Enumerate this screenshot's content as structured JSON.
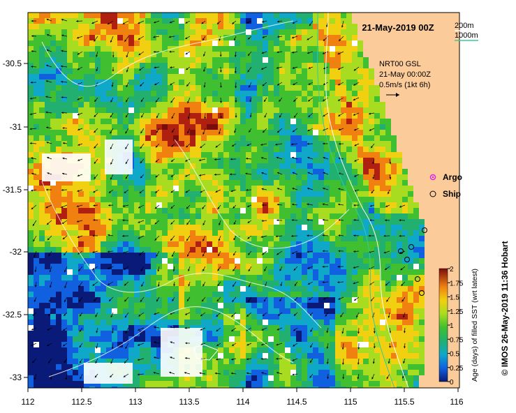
{
  "title": "21-May-2019 00Z",
  "contours": {
    "label_200": "200m",
    "label_1000": "1000m",
    "color_200": "#ffffff",
    "color_1000": "#33cc99"
  },
  "velocity": {
    "line1": "NRT00 GSL",
    "line2": "21-May 00:00Z",
    "line3": "0.5m/s (1kt 6h)"
  },
  "legend": {
    "argo_label": "Argo",
    "ship_label": "Ship",
    "argo_color": "#e022e0"
  },
  "colorbar": {
    "title": "Age (days) of filled SST (wrt latest)",
    "ticks": [
      "0",
      "0.25",
      "0.5",
      "0.75",
      "1",
      "1.25",
      "1.5",
      "1.75",
      "2"
    ],
    "colors": [
      "#0a1a78",
      "#1060e0",
      "#10a8c8",
      "#22b070",
      "#40c030",
      "#a8dc20",
      "#f0d010",
      "#f08010",
      "#b02010",
      "#7a0c0c"
    ]
  },
  "axes": {
    "x_ticks": [
      "112",
      "112.5",
      "113",
      "113.5",
      "114",
      "114.5",
      "115",
      "115.5",
      "116"
    ],
    "y_ticks": [
      "-30.5",
      "-31",
      "-31.5",
      "-32",
      "-32.5",
      "-33"
    ],
    "xlim": [
      112,
      116
    ],
    "ylim": [
      -33.1,
      -30.1
    ]
  },
  "credit": "© IMOS 26-May-2019 11:36 Hobart",
  "land_color": "#fccb9a"
}
